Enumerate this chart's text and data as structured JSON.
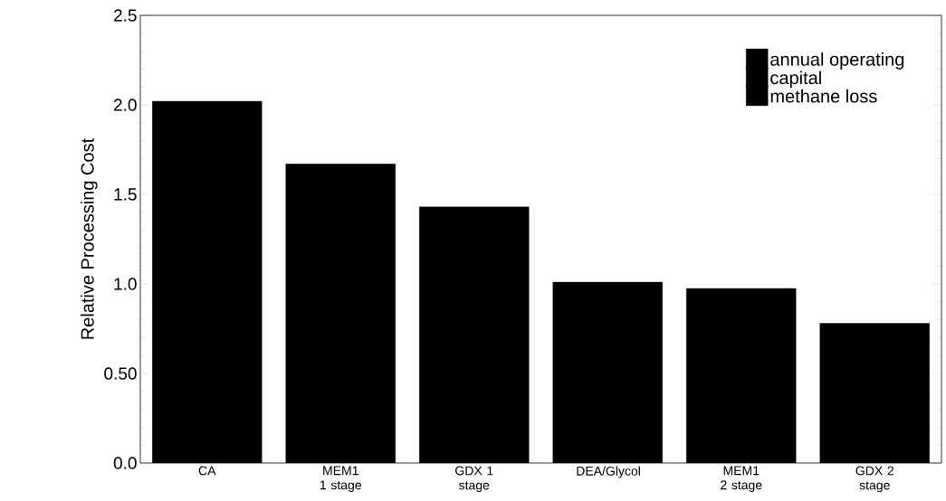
{
  "chart_data": {
    "type": "bar",
    "stacked": true,
    "ylabel": "Relative Processing Cost",
    "categories": [
      "CA",
      "MEM1 1 stage",
      "GDX 1 stage",
      "DEA/Glycol",
      "MEM1 2 stage",
      "GDX 2 stage"
    ],
    "series": [
      {
        "name": "annual operating",
        "color": "#000000",
        "values": [
          2.02,
          1.67,
          1.43,
          1.01,
          0.975,
          0.78
        ]
      },
      {
        "name": "capital",
        "color": "#000000",
        "values": [
          null,
          null,
          null,
          null,
          null,
          null
        ]
      },
      {
        "name": "methane loss",
        "color": "#000000",
        "values": [
          null,
          null,
          null,
          null,
          null,
          null
        ]
      }
    ],
    "ylim": [
      0,
      2.5
    ],
    "yticks": [
      {
        "value": 0,
        "label": "0.0"
      },
      {
        "value": 0.5,
        "label": "0.50"
      },
      {
        "value": 1,
        "label": "1.0"
      },
      1.5,
      {
        "value": 2,
        "label": "2.0"
      },
      2.5
    ],
    "legend": "top right",
    "grid": false
  }
}
